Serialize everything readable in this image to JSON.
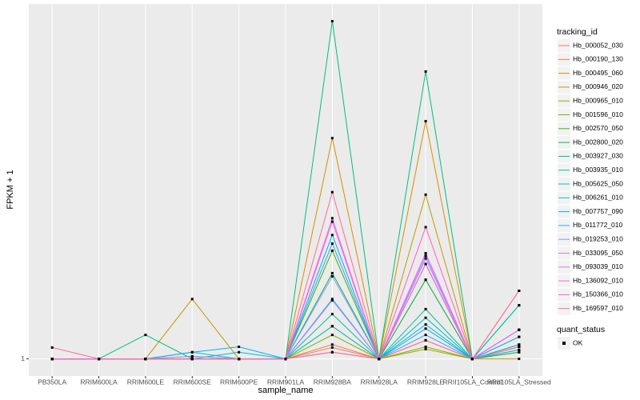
{
  "chart_data": {
    "type": "line",
    "x_label": "sample_name",
    "y_label": "FPKM + 1",
    "categories": [
      "PB350LA",
      "RRIM600LA",
      "RRIM600LE",
      "RRIM600SE",
      "RRIM600PE",
      "RRIM901LA",
      "RRIM928BA",
      "RRIM928LA",
      "RRIM928LE",
      "RRII105LA_Control",
      "RRII105LA_Stressed"
    ],
    "ylim": [
      0.82,
      61
    ],
    "yticks": [
      1
    ],
    "log_y": true,
    "grid": true,
    "legend_title": "tracking_id",
    "point_legend_title": "quant_status",
    "point_legend_label": "OK",
    "point_color": "#000000",
    "series": [
      {
        "name": "Hb_000052_030",
        "color": "#F8766D",
        "values": [
          1,
          1,
          1,
          1,
          1,
          1,
          1.14,
          1,
          1.24,
          1,
          1.08
        ]
      },
      {
        "name": "Hb_000190_130",
        "color": "#EA8331",
        "values": [
          1,
          1,
          1,
          1.03,
          1,
          1,
          1.18,
          1,
          2.5,
          1,
          1.11
        ]
      },
      {
        "name": "Hb_000495_060",
        "color": "#D89000",
        "values": [
          1,
          1,
          1,
          1,
          1,
          1,
          12.9,
          1,
          15.7,
          1,
          1.15
        ]
      },
      {
        "name": "Hb_000946_020",
        "color": "#C09B00",
        "values": [
          1,
          1,
          1,
          2.0,
          1,
          1,
          1.46,
          1,
          6.7,
          1,
          1
        ]
      },
      {
        "name": "Hb_000965_010",
        "color": "#A3A500",
        "values": [
          1,
          1,
          1,
          1,
          1,
          1,
          1.08,
          1,
          1.12,
          1,
          1.15
        ]
      },
      {
        "name": "Hb_001596_010",
        "color": "#7CAE00",
        "values": [
          1,
          1,
          1,
          1,
          1,
          1,
          1.32,
          1,
          1.15,
          1,
          1.18
        ]
      },
      {
        "name": "Hb_002570_050",
        "color": "#39B600",
        "values": [
          1,
          1,
          1,
          1,
          1,
          1,
          3.5,
          1,
          3.0,
          1,
          1.29
        ]
      },
      {
        "name": "Hb_002800_020",
        "color": "#00BB4E",
        "values": [
          1,
          1,
          1,
          1,
          1,
          1,
          2.7,
          1,
          2.5,
          1,
          1.08
        ]
      },
      {
        "name": "Hb_003927_030",
        "color": "#00BF7D",
        "values": [
          1,
          1,
          1.32,
          1,
          1,
          1,
          50,
          1,
          27.9,
          1,
          1.86
        ]
      },
      {
        "name": "Hb_003935_010",
        "color": "#00C1A3",
        "values": [
          1,
          1,
          1,
          1,
          1,
          1,
          1.68,
          1,
          1.78,
          1,
          1.86
        ]
      },
      {
        "name": "Hb_005625_050",
        "color": "#00BFC4",
        "values": [
          1,
          1,
          1,
          1.08,
          1,
          1,
          1.46,
          1,
          1.61,
          1,
          1.18
        ]
      },
      {
        "name": "Hb_006261_010",
        "color": "#00BAE0",
        "values": [
          1,
          1,
          1,
          1,
          1.08,
          1,
          2.0,
          1,
          1.49,
          1,
          1.11
        ]
      },
      {
        "name": "Hb_007757_090",
        "color": "#00B0F6",
        "values": [
          1,
          1,
          1,
          1.08,
          1.15,
          1,
          4.2,
          1,
          1.42,
          1,
          1.4
        ]
      },
      {
        "name": "Hb_011772_010",
        "color": "#35A2FF",
        "values": [
          1,
          1,
          1,
          1,
          1,
          1,
          3.8,
          1,
          1.32,
          1,
          1.29
        ]
      },
      {
        "name": "Hb_019253_010",
        "color": "#9590FF",
        "values": [
          1,
          1,
          1,
          1.03,
          1,
          1,
          2.6,
          1,
          3.2,
          1,
          1.4
        ]
      },
      {
        "name": "Hb_033095_050",
        "color": "#C77CFF",
        "values": [
          1,
          1,
          1,
          1,
          1,
          1,
          1.97,
          1,
          3.3,
          1,
          1.4
        ]
      },
      {
        "name": "Hb_093039_010",
        "color": "#E76BF3",
        "values": [
          1,
          1,
          1,
          1,
          1,
          1,
          4.9,
          1,
          3.4,
          1,
          1.4
        ]
      },
      {
        "name": "Hb_136092_010",
        "color": "#FA62DB",
        "values": [
          1,
          1,
          1,
          1,
          1,
          1,
          5.1,
          1,
          3.0,
          1,
          1.15
        ]
      },
      {
        "name": "Hb_150366_010",
        "color": "#FF62BC",
        "values": [
          1,
          1,
          1,
          1,
          1,
          1,
          1.08,
          1,
          4.6,
          1,
          2.2
        ]
      },
      {
        "name": "Hb_169597_010",
        "color": "#FF6C91",
        "values": [
          1.14,
          1,
          1,
          1,
          1,
          1,
          6.9,
          1,
          1.24,
          1,
          2.2
        ]
      }
    ]
  }
}
